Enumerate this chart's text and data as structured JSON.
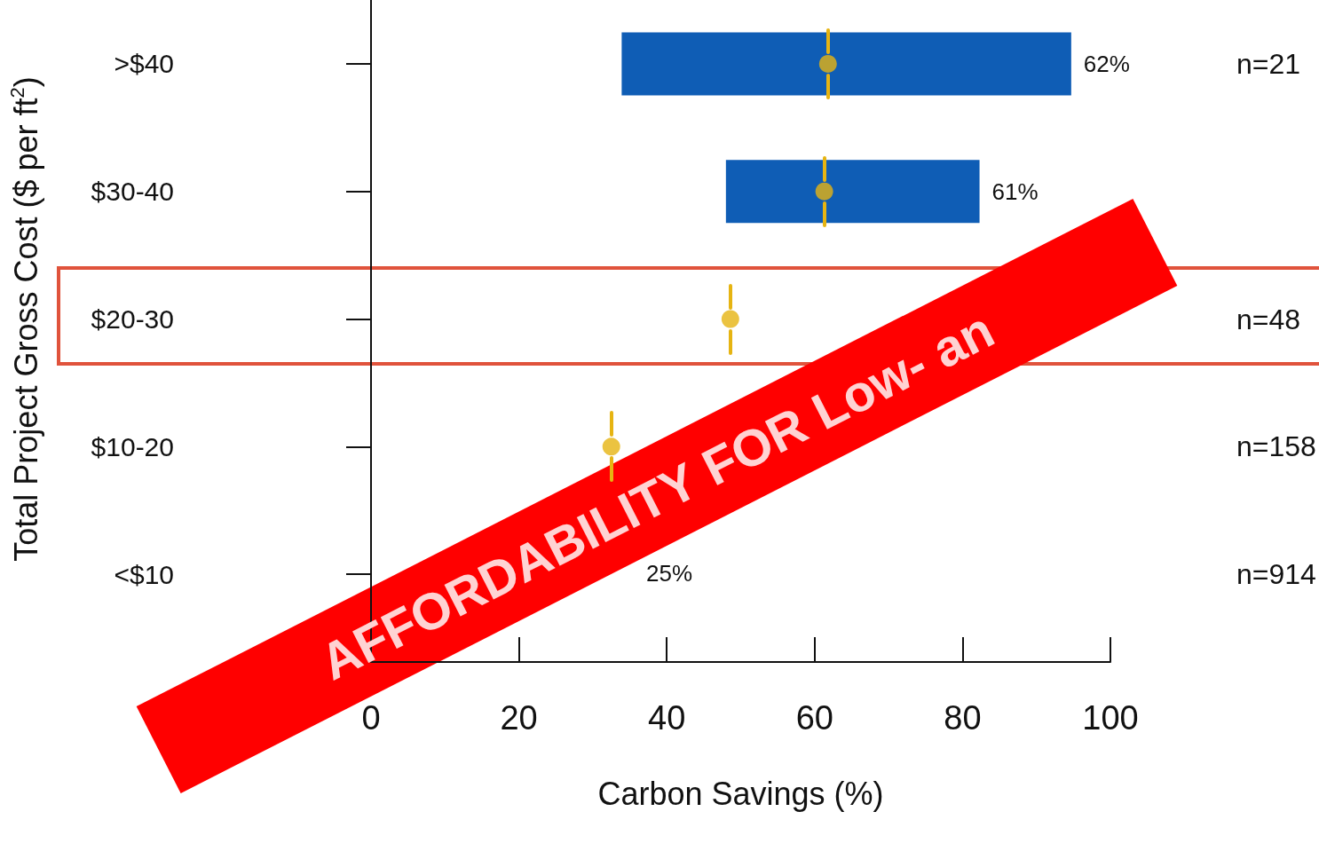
{
  "chart_data": {
    "type": "bar",
    "orientation": "horizontal",
    "xlabel": "Carbon Savings (%)",
    "ylabel": "Total Project Gross Cost ($ per ft$^{2}$)",
    "categories": [
      ">$40",
      "$30-40",
      "$20-30",
      "$10-20",
      "<$10"
    ],
    "xlim": [
      0,
      100
    ],
    "xticks": [
      0,
      20,
      40,
      60,
      80,
      100
    ],
    "series": [
      {
        "color": "#0f5db5",
        "base": [
          33.9,
          48.0,
          null,
          null,
          null
        ],
        "values": [
          60.8,
          34.3,
          null,
          null,
          null
        ]
      },
      {
        "type": "scatter",
        "color": "#e6b412",
        "marker": "circle",
        "values": [
          61.8,
          61.3,
          48.6,
          32.5,
          null
        ]
      }
    ],
    "annotations": [
      "AFFORDABILITY FOR Low- an",
      {
        "text": "62%",
        "x": 94.7,
        "y": ">$40"
      },
      {
        "text": "61%",
        "x": 82.3,
        "y": "$30-40"
      },
      "25%",
      "n=21",
      "n=48",
      "n=158",
      "n=914"
    ]
  }
}
